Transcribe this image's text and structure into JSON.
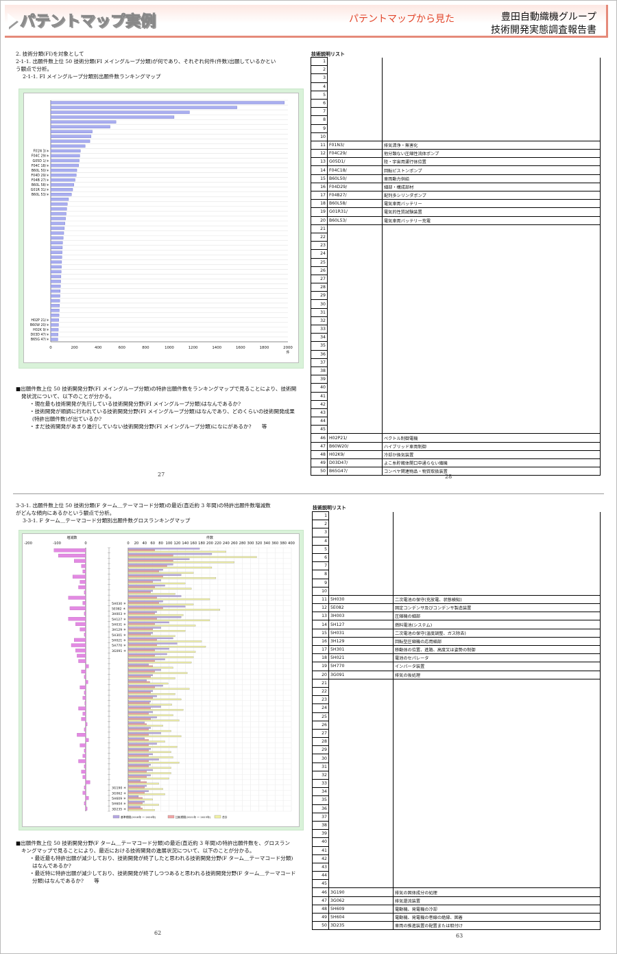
{
  "header": {
    "title": "パテントマップ実例",
    "subtitle": "パテントマップから見た",
    "org": "豊田自動織機グループ",
    "report": "技術開発実態調査報告書"
  },
  "top_left": {
    "section": "2. 技術分類(FI)を対象として",
    "desc_line1": "2-1-1. 出願件数上位 50 技術分類(FI メイングループ分類)が何であり、それぞれ何件(件数)出願しているかとい",
    "desc_line2": "う観点で分析。",
    "chart_caption": "2-1-1. FI メイングループ分類別出願件数ランキングマップ",
    "notes": [
      "■出願件数上位 50 技術開発分野(FI メイングループ分類)の特許出願件数をランキングマップで見ることにより、技術開",
      "発状況について、以下のことが分かる。",
      "・現在最も技術開発が先行している技術開発分野(FI メイングループ分類)はなんであるか?",
      "・技術開発が順調に行われている技術開発分野(FI メイングループ分類)はなんであり、どのくらいの技術開発成果",
      "(特許出願件数)が出ているか?",
      "・まだ技術開発があまり進行していない技術開発分野(FI メイングループ分類)になにがあるか?　　等"
    ],
    "page": "27"
  },
  "top_right": {
    "list_title": "技術説明リスト",
    "rows": [
      {
        "n": "11",
        "code": "F01N3/",
        "desc": "排気清浄・無害化"
      },
      {
        "n": "12",
        "code": "F04C29/",
        "desc": "他分類ない圧縮性流体ポンプ"
      },
      {
        "n": "13",
        "code": "G05D1/",
        "desc": "陸・宇宙用運行体位置"
      },
      {
        "n": "14",
        "code": "F04C18/",
        "desc": "回転ピストンポンプ"
      },
      {
        "n": "15",
        "code": "B60L50/",
        "desc": "車両動力供給"
      },
      {
        "n": "16",
        "code": "F04D29/",
        "desc": "細部・構成部材"
      },
      {
        "n": "17",
        "code": "F04B27/",
        "desc": "配列多シリンダポンプ"
      },
      {
        "n": "18",
        "code": "B60L58/",
        "desc": "電気車両バッテリー"
      },
      {
        "n": "19",
        "code": "G01R31/",
        "desc": "電気的性質試験装置"
      },
      {
        "n": "20",
        "code": "B60L53/",
        "desc": "電気車両バッテリー充電"
      },
      {
        "n": "46",
        "code": "H02P21/",
        "desc": "ベクトル制御電機"
      },
      {
        "n": "47",
        "code": "B60W20/",
        "desc": "ハイブリッド車両制御"
      },
      {
        "n": "48",
        "code": "H02K9/",
        "desc": "冷却か換気装置"
      },
      {
        "n": "49",
        "code": "D03D47/",
        "desc": "よこ糸貯蔵体開口中通らない織機"
      },
      {
        "n": "50",
        "code": "B65G47/",
        "desc": "コンベヤ関連物品・物質取扱装置"
      }
    ],
    "page": "28"
  },
  "bottom_left": {
    "desc_line1": "3-3-1. 出願件数上位 50 技術分類(F ターム＿テーマコード分類)の最近(直近約 3 年間)の特許出願件数増減数",
    "desc_line2": "がどんな傾向にあるかという観点で分析。",
    "chart_caption": "3-3-1. F ターム＿テーマコード分類別出願件数グロスランキングマップ",
    "notes": [
      "■出願件数上位 50 技術開発分野(F ターム＿テーマコード分類)の最近(直近約 3 年間)の特許出願件数を、グロスラン",
      "キングマップで見ることにより、最近における技術開発の進展状況について、以下のことが分かる。",
      "・最近最も特許出願が減少しており、技術開発が終了したと思われる技術開発分野(F ターム＿テーマコード分類)",
      "はなんであるか?",
      "・最近特に特許出願が減少しており、技術開発が終了しつつあると思われる技術開発分野(F ターム＿テーマコード",
      "分類)はなんであるか?　　等"
    ],
    "page": "62"
  },
  "bottom_right": {
    "list_title": "技術説明リスト",
    "rows": [
      {
        "n": "11",
        "code": "5H030",
        "desc": "二次電池の保守(充放電、状態検知)"
      },
      {
        "n": "12",
        "code": "5E082",
        "desc": "固定コンデンサ及びコンデンサ製造装置"
      },
      {
        "n": "13",
        "code": "3H003",
        "desc": "圧縮機の細部"
      },
      {
        "n": "14",
        "code": "5H127",
        "desc": "燃料電池(システム)"
      },
      {
        "n": "15",
        "code": "5H031",
        "desc": "二次電池の保守(温度調整、ガス除去)"
      },
      {
        "n": "16",
        "code": "3H129",
        "desc": "回転型圧縮機の応用細部"
      },
      {
        "n": "17",
        "code": "5H301",
        "desc": "移動体の位置、進路、高度又は姿勢の制御"
      },
      {
        "n": "18",
        "code": "5H021",
        "desc": "電池のセパレータ"
      },
      {
        "n": "19",
        "code": "5H770",
        "desc": "インバータ装置"
      },
      {
        "n": "20",
        "code": "3G091",
        "desc": "排気の後処理"
      },
      {
        "n": "46",
        "code": "3G190",
        "desc": "排気の固体成分の処理"
      },
      {
        "n": "47",
        "code": "3G062",
        "desc": "排気還流装置"
      },
      {
        "n": "48",
        "code": "5H609",
        "desc": "電動機、発電機の冷却"
      },
      {
        "n": "49",
        "code": "5H604",
        "desc": "電動機、発電機の巻線の絶縁、固着"
      },
      {
        "n": "50",
        "code": "3D235",
        "desc": "車両の推進装置の配置または取付け"
      }
    ],
    "page": "63"
  },
  "chart_data": [
    {
      "type": "bar",
      "orientation": "horizontal",
      "xlim": [
        0,
        2000
      ],
      "xticks": [
        "0",
        "200",
        "400",
        "600",
        "800",
        "1000",
        "1200",
        "1400",
        "1600",
        "1800",
        "2000"
      ],
      "xunit": "件",
      "visible_labels": [
        {
          "rank": 11,
          "label": "F01N 3/＊"
        },
        {
          "rank": 12,
          "label": "F04C 29/＊"
        },
        {
          "rank": 13,
          "label": "G05D 1/＊"
        },
        {
          "rank": 14,
          "label": "F04C 18/＊"
        },
        {
          "rank": 15,
          "label": "B60L 50/＊"
        },
        {
          "rank": 16,
          "label": "F04D 29/＊"
        },
        {
          "rank": 17,
          "label": "F04B 27/＊"
        },
        {
          "rank": 18,
          "label": "B60L 58/＊"
        },
        {
          "rank": 19,
          "label": "G01R 31/＊"
        },
        {
          "rank": 20,
          "label": "B60L 53/＊"
        },
        {
          "rank": 46,
          "label": "H02P 21/＊"
        },
        {
          "rank": 47,
          "label": "B60W 20/＊"
        },
        {
          "rank": 48,
          "label": "H02K 9/＊"
        },
        {
          "rank": 49,
          "label": "D03D 47/＊"
        },
        {
          "rank": 50,
          "label": "B65G 47/＊"
        }
      ],
      "values": [
        1970,
        1570,
        1170,
        1040,
        550,
        500,
        350,
        340,
        330,
        290,
        250,
        245,
        240,
        235,
        220,
        215,
        205,
        195,
        185,
        175,
        150,
        140,
        135,
        130,
        125,
        120,
        115,
        110,
        105,
        100,
        98,
        96,
        94,
        92,
        90,
        88,
        86,
        84,
        82,
        80,
        78,
        76,
        74,
        72,
        70,
        68,
        66,
        64,
        62,
        60
      ]
    },
    {
      "type": "bar",
      "orientation": "horizontal",
      "left_axis_title": "増減数",
      "left_xlim": [
        -200,
        0
      ],
      "left_ticks": [
        "-200",
        "-100",
        "0"
      ],
      "right_axis_title": "件数",
      "right_xlim": [
        0,
        400
      ],
      "right_ticks": [
        "0",
        "20",
        "40",
        "60",
        "80",
        "100",
        "120",
        "140",
        "160",
        "180",
        "200",
        "220",
        "240",
        "260",
        "280",
        "300",
        "320",
        "340",
        "360",
        "380",
        "400"
      ],
      "legend": [
        "基準期間(2018年 〜 2020年)",
        "比較期間(2021年 〜 2023年)",
        "合計"
      ],
      "colors": {
        "base": "#b6a7e3",
        "compare": "#f2a6a6",
        "total": "#f2f2a6",
        "change": "#e38ae3"
      },
      "visible_labels": [
        {
          "rank": 11,
          "label": "5H030 ＊"
        },
        {
          "rank": 12,
          "label": "5E082 ＊"
        },
        {
          "rank": 13,
          "label": "3H003 ＊"
        },
        {
          "rank": 14,
          "label": "5H127 ＊"
        },
        {
          "rank": 15,
          "label": "5H031 ＊"
        },
        {
          "rank": 16,
          "label": "3H129 ＊"
        },
        {
          "rank": 17,
          "label": "5H301 ＊"
        },
        {
          "rank": 18,
          "label": "5H021 ＊"
        },
        {
          "rank": 19,
          "label": "5H770 ＊"
        },
        {
          "rank": 20,
          "label": "3G091 ＊"
        },
        {
          "rank": 46,
          "label": "3G190 ＊"
        },
        {
          "rank": 47,
          "label": "3G062 ＊"
        },
        {
          "rank": 48,
          "label": "5H609 ＊"
        },
        {
          "rank": 49,
          "label": "5H604 ＊"
        },
        {
          "rank": 50,
          "label": "3D235 ＊"
        }
      ],
      "change": [
        -110,
        -95,
        -40,
        -15,
        -10,
        -45,
        -20,
        -25,
        -5,
        -60,
        -10,
        -55,
        -5,
        -60,
        -35,
        -20,
        -5,
        -40,
        -50,
        -35,
        -30,
        -25,
        10,
        -15,
        -5,
        8,
        -20,
        -5,
        -10,
        -3,
        -25,
        -10,
        -15,
        5,
        -5,
        -30,
        10,
        -20,
        -5,
        -10,
        -25,
        -5,
        -15,
        -10,
        15,
        -5,
        -10,
        10,
        -5,
        5
      ],
      "base": [
        175,
        205,
        150,
        110,
        85,
        130,
        80,
        90,
        60,
        130,
        85,
        140,
        70,
        130,
        100,
        80,
        60,
        110,
        120,
        100,
        95,
        90,
        50,
        80,
        60,
        45,
        85,
        60,
        70,
        55,
        80,
        60,
        70,
        40,
        55,
        80,
        40,
        70,
        55,
        60,
        75,
        55,
        60,
        55,
        30,
        45,
        50,
        25,
        40,
        30
      ],
      "compare": [
        65,
        110,
        110,
        95,
        75,
        85,
        60,
        65,
        55,
        70,
        75,
        85,
        65,
        70,
        65,
        60,
        55,
        70,
        70,
        65,
        65,
        65,
        60,
        65,
        55,
        53,
        65,
        55,
        60,
        52,
        55,
        50,
        55,
        45,
        50,
        50,
        50,
        50,
        50,
        50,
        50,
        50,
        45,
        45,
        45,
        40,
        40,
        35,
        35,
        35
      ],
      "total": [
        240,
        315,
        260,
        205,
        160,
        215,
        140,
        155,
        115,
        200,
        160,
        225,
        135,
        200,
        165,
        140,
        115,
        180,
        190,
        165,
        160,
        155,
        110,
        145,
        115,
        98,
        150,
        115,
        130,
        107,
        135,
        110,
        125,
        85,
        105,
        130,
        90,
        120,
        105,
        110,
        125,
        105,
        105,
        100,
        75,
        85,
        90,
        60,
        75,
        65
      ]
    }
  ]
}
